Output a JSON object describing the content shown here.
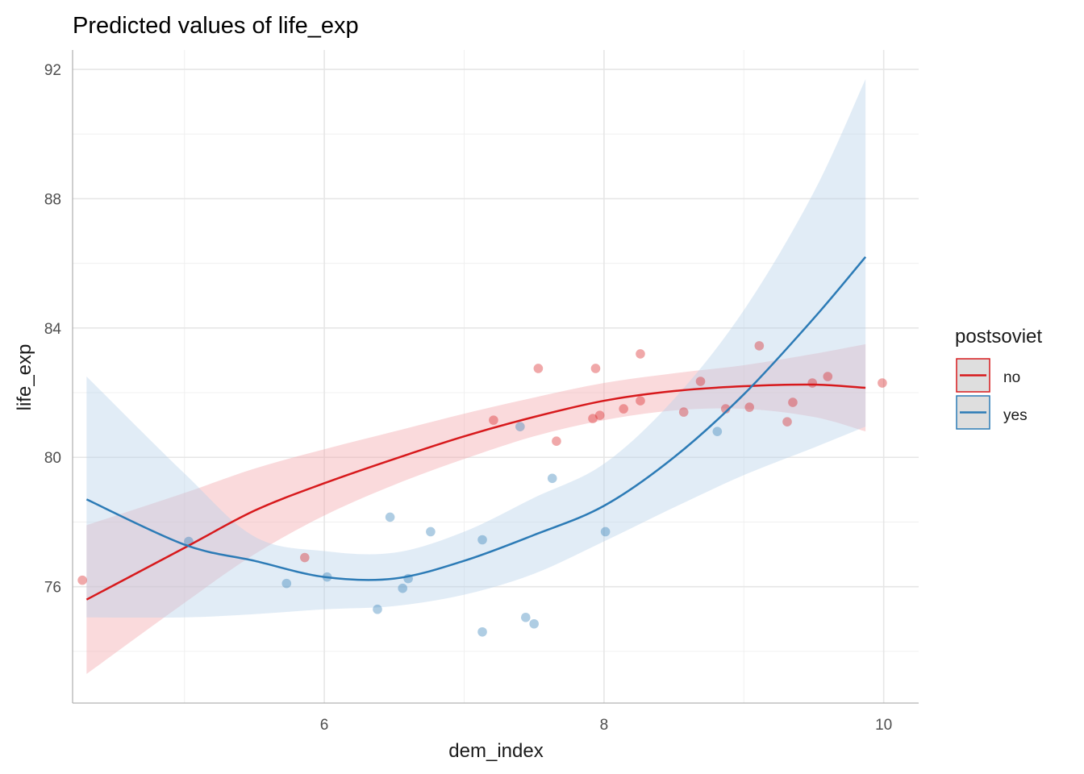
{
  "chart_data": {
    "type": "line",
    "title": "Predicted values of life_exp",
    "xlabel": "dem_index",
    "ylabel": "life_exp",
    "xlim": [
      4.2,
      10.25
    ],
    "ylim": [
      72.4,
      92.6
    ],
    "x_ticks": [
      6,
      8,
      10
    ],
    "x_tick_labels": [
      "6",
      "8",
      "10"
    ],
    "x_minor_ticks": [
      5,
      7,
      9
    ],
    "y_ticks": [
      76,
      80,
      84,
      88,
      92
    ],
    "y_tick_labels": [
      "76",
      "80",
      "84",
      "88",
      "92"
    ],
    "y_minor_ticks": [
      74,
      78,
      82,
      86,
      90
    ],
    "grid": true,
    "legend": {
      "title": "postsoviet",
      "position": "right"
    },
    "series": [
      {
        "name": "no",
        "color": "#D7191C",
        "fill": "#F4A6AB",
        "x": [
          4.3,
          5.0,
          5.5,
          6.0,
          6.5,
          7.0,
          7.5,
          8.0,
          8.5,
          9.0,
          9.5,
          9.87
        ],
        "fit": [
          75.6,
          77.2,
          78.35,
          79.2,
          79.95,
          80.65,
          81.25,
          81.75,
          82.05,
          82.2,
          82.25,
          82.15
        ],
        "lower": [
          73.3,
          75.5,
          77.0,
          78.2,
          79.15,
          79.95,
          80.65,
          81.15,
          81.45,
          81.5,
          81.25,
          80.8
        ],
        "upper": [
          77.9,
          78.9,
          79.65,
          80.25,
          80.8,
          81.35,
          81.85,
          82.3,
          82.6,
          82.85,
          83.2,
          83.5
        ],
        "points": [
          {
            "x": 4.27,
            "y": 76.2
          },
          {
            "x": 5.86,
            "y": 76.9
          },
          {
            "x": 7.21,
            "y": 81.15
          },
          {
            "x": 7.53,
            "y": 82.75
          },
          {
            "x": 7.66,
            "y": 80.5
          },
          {
            "x": 7.92,
            "y": 81.2
          },
          {
            "x": 7.94,
            "y": 82.75
          },
          {
            "x": 7.97,
            "y": 81.3
          },
          {
            "x": 8.14,
            "y": 81.5
          },
          {
            "x": 8.26,
            "y": 81.75
          },
          {
            "x": 8.26,
            "y": 83.2
          },
          {
            "x": 8.57,
            "y": 81.4
          },
          {
            "x": 8.69,
            "y": 82.35
          },
          {
            "x": 8.87,
            "y": 81.5
          },
          {
            "x": 9.04,
            "y": 81.55
          },
          {
            "x": 9.11,
            "y": 83.45
          },
          {
            "x": 9.31,
            "y": 81.1
          },
          {
            "x": 9.35,
            "y": 81.7
          },
          {
            "x": 9.49,
            "y": 82.3
          },
          {
            "x": 9.6,
            "y": 82.5
          },
          {
            "x": 9.99,
            "y": 82.3
          }
        ]
      },
      {
        "name": "yes",
        "color": "#2C7BB6",
        "fill": "#B8D1EA",
        "x": [
          4.3,
          5.0,
          5.5,
          6.0,
          6.5,
          7.0,
          7.5,
          8.0,
          8.5,
          9.0,
          9.5,
          9.87
        ],
        "fit": [
          78.7,
          77.3,
          76.8,
          76.3,
          76.25,
          76.8,
          77.6,
          78.5,
          80.0,
          81.95,
          84.3,
          86.2
        ],
        "lower": [
          75.05,
          75.05,
          75.15,
          75.3,
          75.4,
          75.75,
          76.4,
          77.4,
          78.45,
          79.45,
          80.3,
          80.95
        ],
        "upper": [
          82.5,
          79.5,
          77.55,
          77.1,
          77.05,
          77.7,
          78.75,
          79.8,
          81.8,
          84.55,
          88.2,
          91.7
        ],
        "points": [
          {
            "x": 5.03,
            "y": 77.4
          },
          {
            "x": 5.73,
            "y": 76.1
          },
          {
            "x": 6.02,
            "y": 76.3
          },
          {
            "x": 6.38,
            "y": 75.3
          },
          {
            "x": 6.47,
            "y": 78.15
          },
          {
            "x": 6.56,
            "y": 75.95
          },
          {
            "x": 6.6,
            "y": 76.25
          },
          {
            "x": 6.76,
            "y": 77.7
          },
          {
            "x": 7.13,
            "y": 77.45
          },
          {
            "x": 7.13,
            "y": 74.6
          },
          {
            "x": 7.4,
            "y": 80.95
          },
          {
            "x": 7.44,
            "y": 75.05
          },
          {
            "x": 7.5,
            "y": 74.85
          },
          {
            "x": 7.63,
            "y": 79.35
          },
          {
            "x": 8.01,
            "y": 77.7
          },
          {
            "x": 8.81,
            "y": 80.8
          }
        ]
      }
    ]
  }
}
